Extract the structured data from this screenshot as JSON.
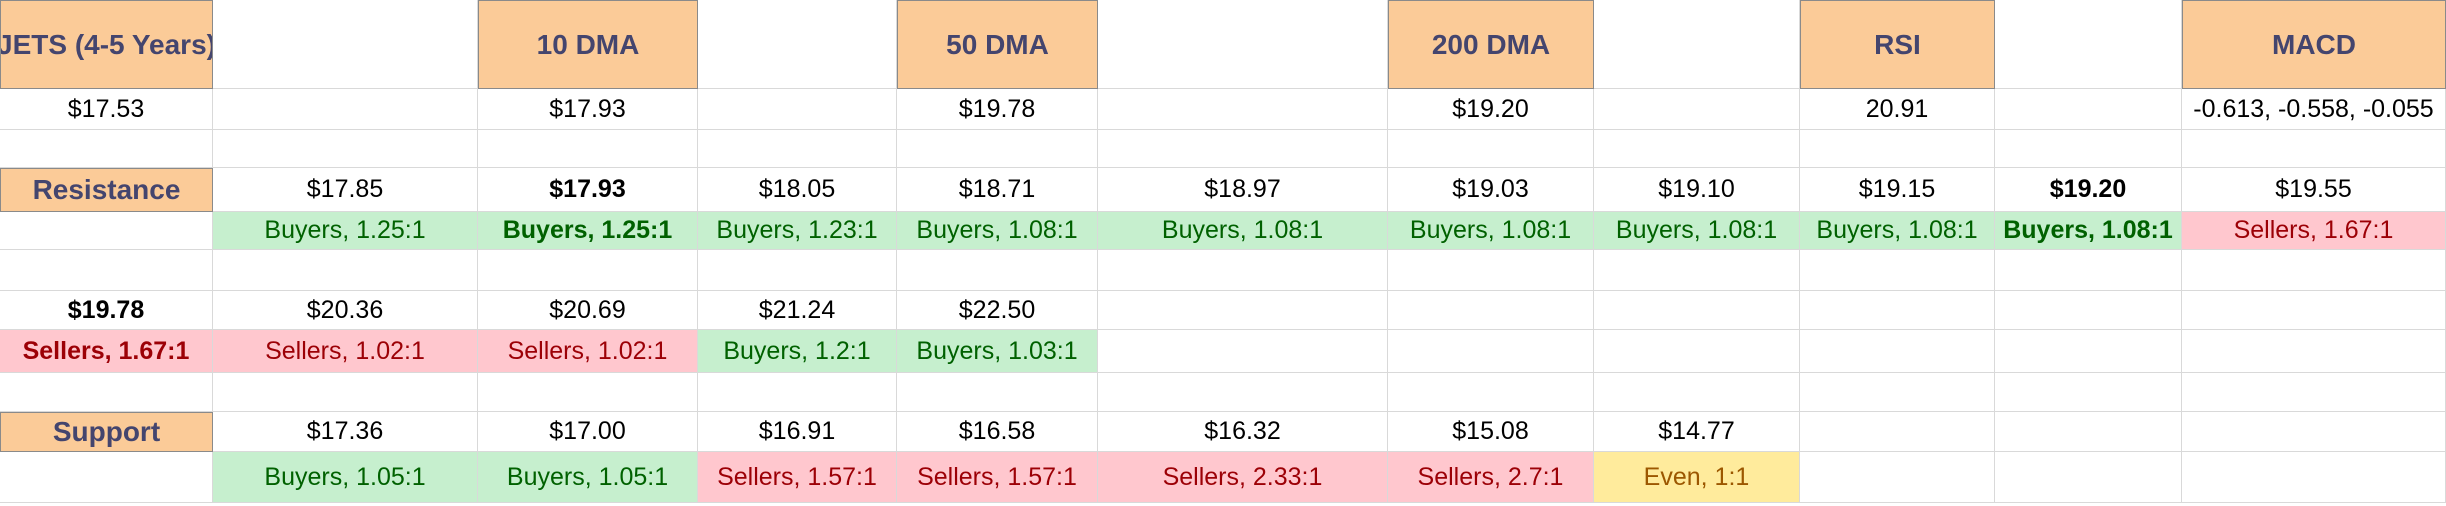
{
  "header": {
    "ticker": "JETS (4-5 Years)",
    "dma10_label": "10 DMA",
    "dma50_label": "50 DMA",
    "dma200_label": "200 DMA",
    "rsi_label": "RSI",
    "macd_label": "MACD"
  },
  "values": {
    "price": "$17.53",
    "dma10": "$17.93",
    "dma50": "$19.78",
    "dma200": "$19.20",
    "rsi": "20.91",
    "macd": "-0.613, -0.558, -0.055"
  },
  "resistance": {
    "label": "Resistance",
    "row1": [
      {
        "price": "$17.85",
        "ratio": "Buyers, 1.25:1",
        "sentiment": "buy",
        "bold": false
      },
      {
        "price": "$17.93",
        "ratio": "Buyers, 1.25:1",
        "sentiment": "buy",
        "bold": true
      },
      {
        "price": "$18.05",
        "ratio": "Buyers, 1.23:1",
        "sentiment": "buy",
        "bold": false
      },
      {
        "price": "$18.71",
        "ratio": "Buyers, 1.08:1",
        "sentiment": "buy",
        "bold": false
      },
      {
        "price": "$18.97",
        "ratio": "Buyers, 1.08:1",
        "sentiment": "buy",
        "bold": false
      },
      {
        "price": "$19.03",
        "ratio": "Buyers, 1.08:1",
        "sentiment": "buy",
        "bold": false
      },
      {
        "price": "$19.10",
        "ratio": "Buyers, 1.08:1",
        "sentiment": "buy",
        "bold": false
      },
      {
        "price": "$19.15",
        "ratio": "Buyers, 1.08:1",
        "sentiment": "buy",
        "bold": false
      },
      {
        "price": "$19.20",
        "ratio": "Buyers, 1.08:1",
        "sentiment": "buy",
        "bold": true
      },
      {
        "price": "$19.55",
        "ratio": "Sellers, 1.67:1",
        "sentiment": "sell",
        "bold": false
      }
    ],
    "row2": [
      {
        "price": "$19.78",
        "ratio": "Sellers, 1.67:1",
        "sentiment": "sell",
        "bold": true
      },
      {
        "price": "$20.36",
        "ratio": "Sellers, 1.02:1",
        "sentiment": "sell",
        "bold": false
      },
      {
        "price": "$20.69",
        "ratio": "Sellers, 1.02:1",
        "sentiment": "sell",
        "bold": false
      },
      {
        "price": "$21.24",
        "ratio": "Buyers, 1.2:1",
        "sentiment": "buy",
        "bold": false
      },
      {
        "price": "$22.50",
        "ratio": "Buyers, 1.03:1",
        "sentiment": "buy",
        "bold": false
      }
    ]
  },
  "support": {
    "label": "Support",
    "row": [
      {
        "price": "$17.36",
        "ratio": "Buyers, 1.05:1",
        "sentiment": "buy",
        "bold": false
      },
      {
        "price": "$17.00",
        "ratio": "Buyers, 1.05:1",
        "sentiment": "buy",
        "bold": false
      },
      {
        "price": "$16.91",
        "ratio": "Sellers, 1.57:1",
        "sentiment": "sell",
        "bold": false
      },
      {
        "price": "$16.58",
        "ratio": "Sellers, 1.57:1",
        "sentiment": "sell",
        "bold": false
      },
      {
        "price": "$16.32",
        "ratio": "Sellers, 2.33:1",
        "sentiment": "sell",
        "bold": false
      },
      {
        "price": "$15.08",
        "ratio": "Sellers, 2.7:1",
        "sentiment": "sell",
        "bold": false
      },
      {
        "price": "$14.77",
        "ratio": "Even, 1:1",
        "sentiment": "even",
        "bold": false
      }
    ]
  },
  "colors": {
    "header_fill": "#fbcb98",
    "header_text": "#44456e",
    "buyers_fill": "#c6efce",
    "buyers_text": "#006100",
    "sellers_fill": "#ffc7ce",
    "sellers_text": "#9c0006",
    "even_fill": "#ffeb9c",
    "even_text": "#9c5700"
  }
}
